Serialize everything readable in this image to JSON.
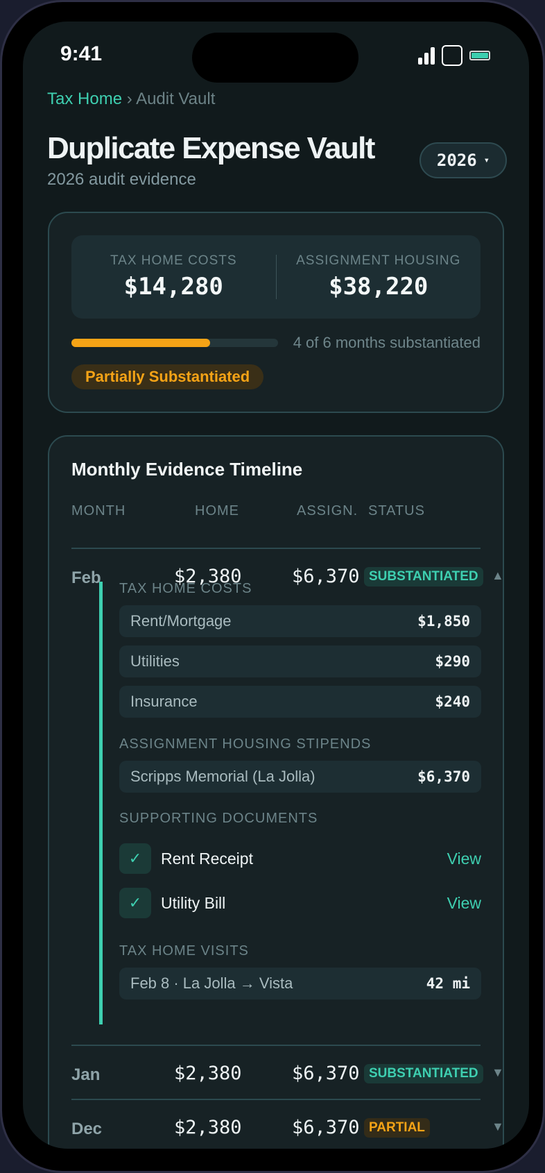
{
  "status_bar": {
    "time": "9:41",
    "icons": [
      "signal-icon",
      "square-icon",
      "battery-icon"
    ]
  },
  "breadcrumb": {
    "root": "Tax Home",
    "separator": "›",
    "current": "Audit Vault"
  },
  "header": {
    "title": "Duplicate Expense Vault",
    "subtitle": "2026 audit evidence",
    "year_select": "2026",
    "year_chevron": "▾"
  },
  "summary": {
    "tax_home_label": "TAX HOME COSTS",
    "tax_home_value": "$14,280",
    "assignment_label": "ASSIGNMENT HOUSING",
    "assignment_value": "$38,220",
    "progress_percent": 67,
    "progress_text": "4 of 6 months substantiated",
    "status_badge": "Partially Substantiated"
  },
  "timeline": {
    "title": "Monthly Evidence Timeline",
    "columns": [
      "MONTH",
      "HOME",
      "ASSIGN.",
      "STATUS"
    ],
    "rows": [
      {
        "month": "Feb",
        "home": "$2,380",
        "assign": "$6,370",
        "status": "SUBSTANTIATED",
        "chevron": "▲",
        "expanded": true
      },
      {
        "month": "Jan",
        "home": "$2,380",
        "assign": "$6,370",
        "status": "SUBSTANTIATED",
        "chevron": "▼"
      },
      {
        "month": "Dec",
        "home": "$2,380",
        "assign": "$6,370",
        "status": "PARTIAL",
        "chevron": "▼"
      }
    ],
    "detail": {
      "tax_home_title": "TAX HOME COSTS",
      "tax_home_items": [
        {
          "label": "Rent/Mortgage",
          "value": "$1,850"
        },
        {
          "label": "Utilities",
          "value": "$290"
        },
        {
          "label": "Insurance",
          "value": "$240"
        }
      ],
      "stipend_title": "ASSIGNMENT HOUSING STIPENDS",
      "stipend_items": [
        {
          "label": "Scripps Memorial (La Jolla)",
          "value": "$6,370"
        }
      ],
      "docs_title": "SUPPORTING DOCUMENTS",
      "docs": [
        {
          "check": "✓",
          "label": "Rent Receipt",
          "action": "View"
        },
        {
          "check": "✓",
          "label": "Utility Bill",
          "action": "View"
        }
      ],
      "visits_title": "TAX HOME VISITS",
      "visits": [
        {
          "label": "Feb 8 · La Jolla → Vista",
          "value": "42 mi"
        }
      ]
    }
  },
  "colors": {
    "accent": "#3ecfb0",
    "warning": "#f5a316",
    "background": "#111a1c",
    "card": "#172225"
  }
}
